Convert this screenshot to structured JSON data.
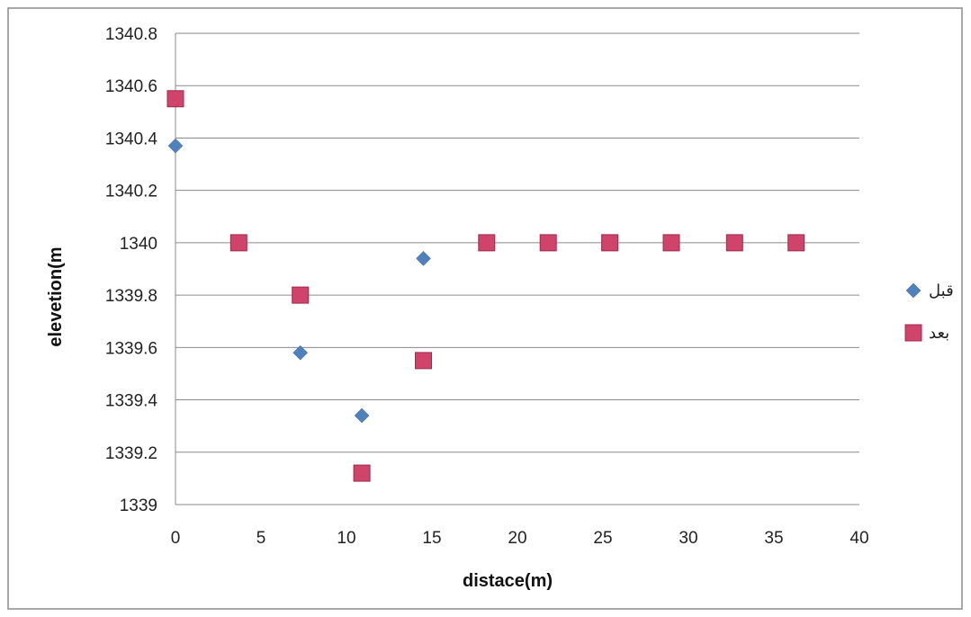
{
  "chart_data": {
    "type": "scatter",
    "title": "",
    "xlabel": "distace(m)",
    "ylabel": "elevetion(m",
    "xlim": [
      0,
      40
    ],
    "ylim": [
      1339,
      1340.8
    ],
    "x_ticks": [
      "0",
      "5",
      "10",
      "15",
      "20",
      "25",
      "30",
      "35",
      "40"
    ],
    "y_ticks": [
      "1339",
      "1339.2",
      "1339.4",
      "1339.6",
      "1339.8",
      "1340",
      "1340.2",
      "1340.4",
      "1340.6",
      "1340.8"
    ],
    "grid": "horizontal",
    "legend_position": "right",
    "series": [
      {
        "name": "قبل",
        "marker": "diamond",
        "color": "#4f81bd",
        "points": [
          {
            "x": 0,
            "y": 1340.37
          },
          {
            "x": 7.3,
            "y": 1339.58
          },
          {
            "x": 10.9,
            "y": 1339.34
          },
          {
            "x": 14.5,
            "y": 1339.94
          }
        ]
      },
      {
        "name": "بعد",
        "marker": "square",
        "color": "#d0436a",
        "points": [
          {
            "x": 0,
            "y": 1340.55
          },
          {
            "x": 3.7,
            "y": 1340.0
          },
          {
            "x": 7.3,
            "y": 1339.8
          },
          {
            "x": 10.9,
            "y": 1339.12
          },
          {
            "x": 14.5,
            "y": 1339.55
          },
          {
            "x": 18.2,
            "y": 1340.0
          },
          {
            "x": 21.8,
            "y": 1340.0
          },
          {
            "x": 25.4,
            "y": 1340.0
          },
          {
            "x": 29.0,
            "y": 1340.0
          },
          {
            "x": 32.7,
            "y": 1340.0
          },
          {
            "x": 36.3,
            "y": 1340.0
          }
        ]
      }
    ]
  }
}
